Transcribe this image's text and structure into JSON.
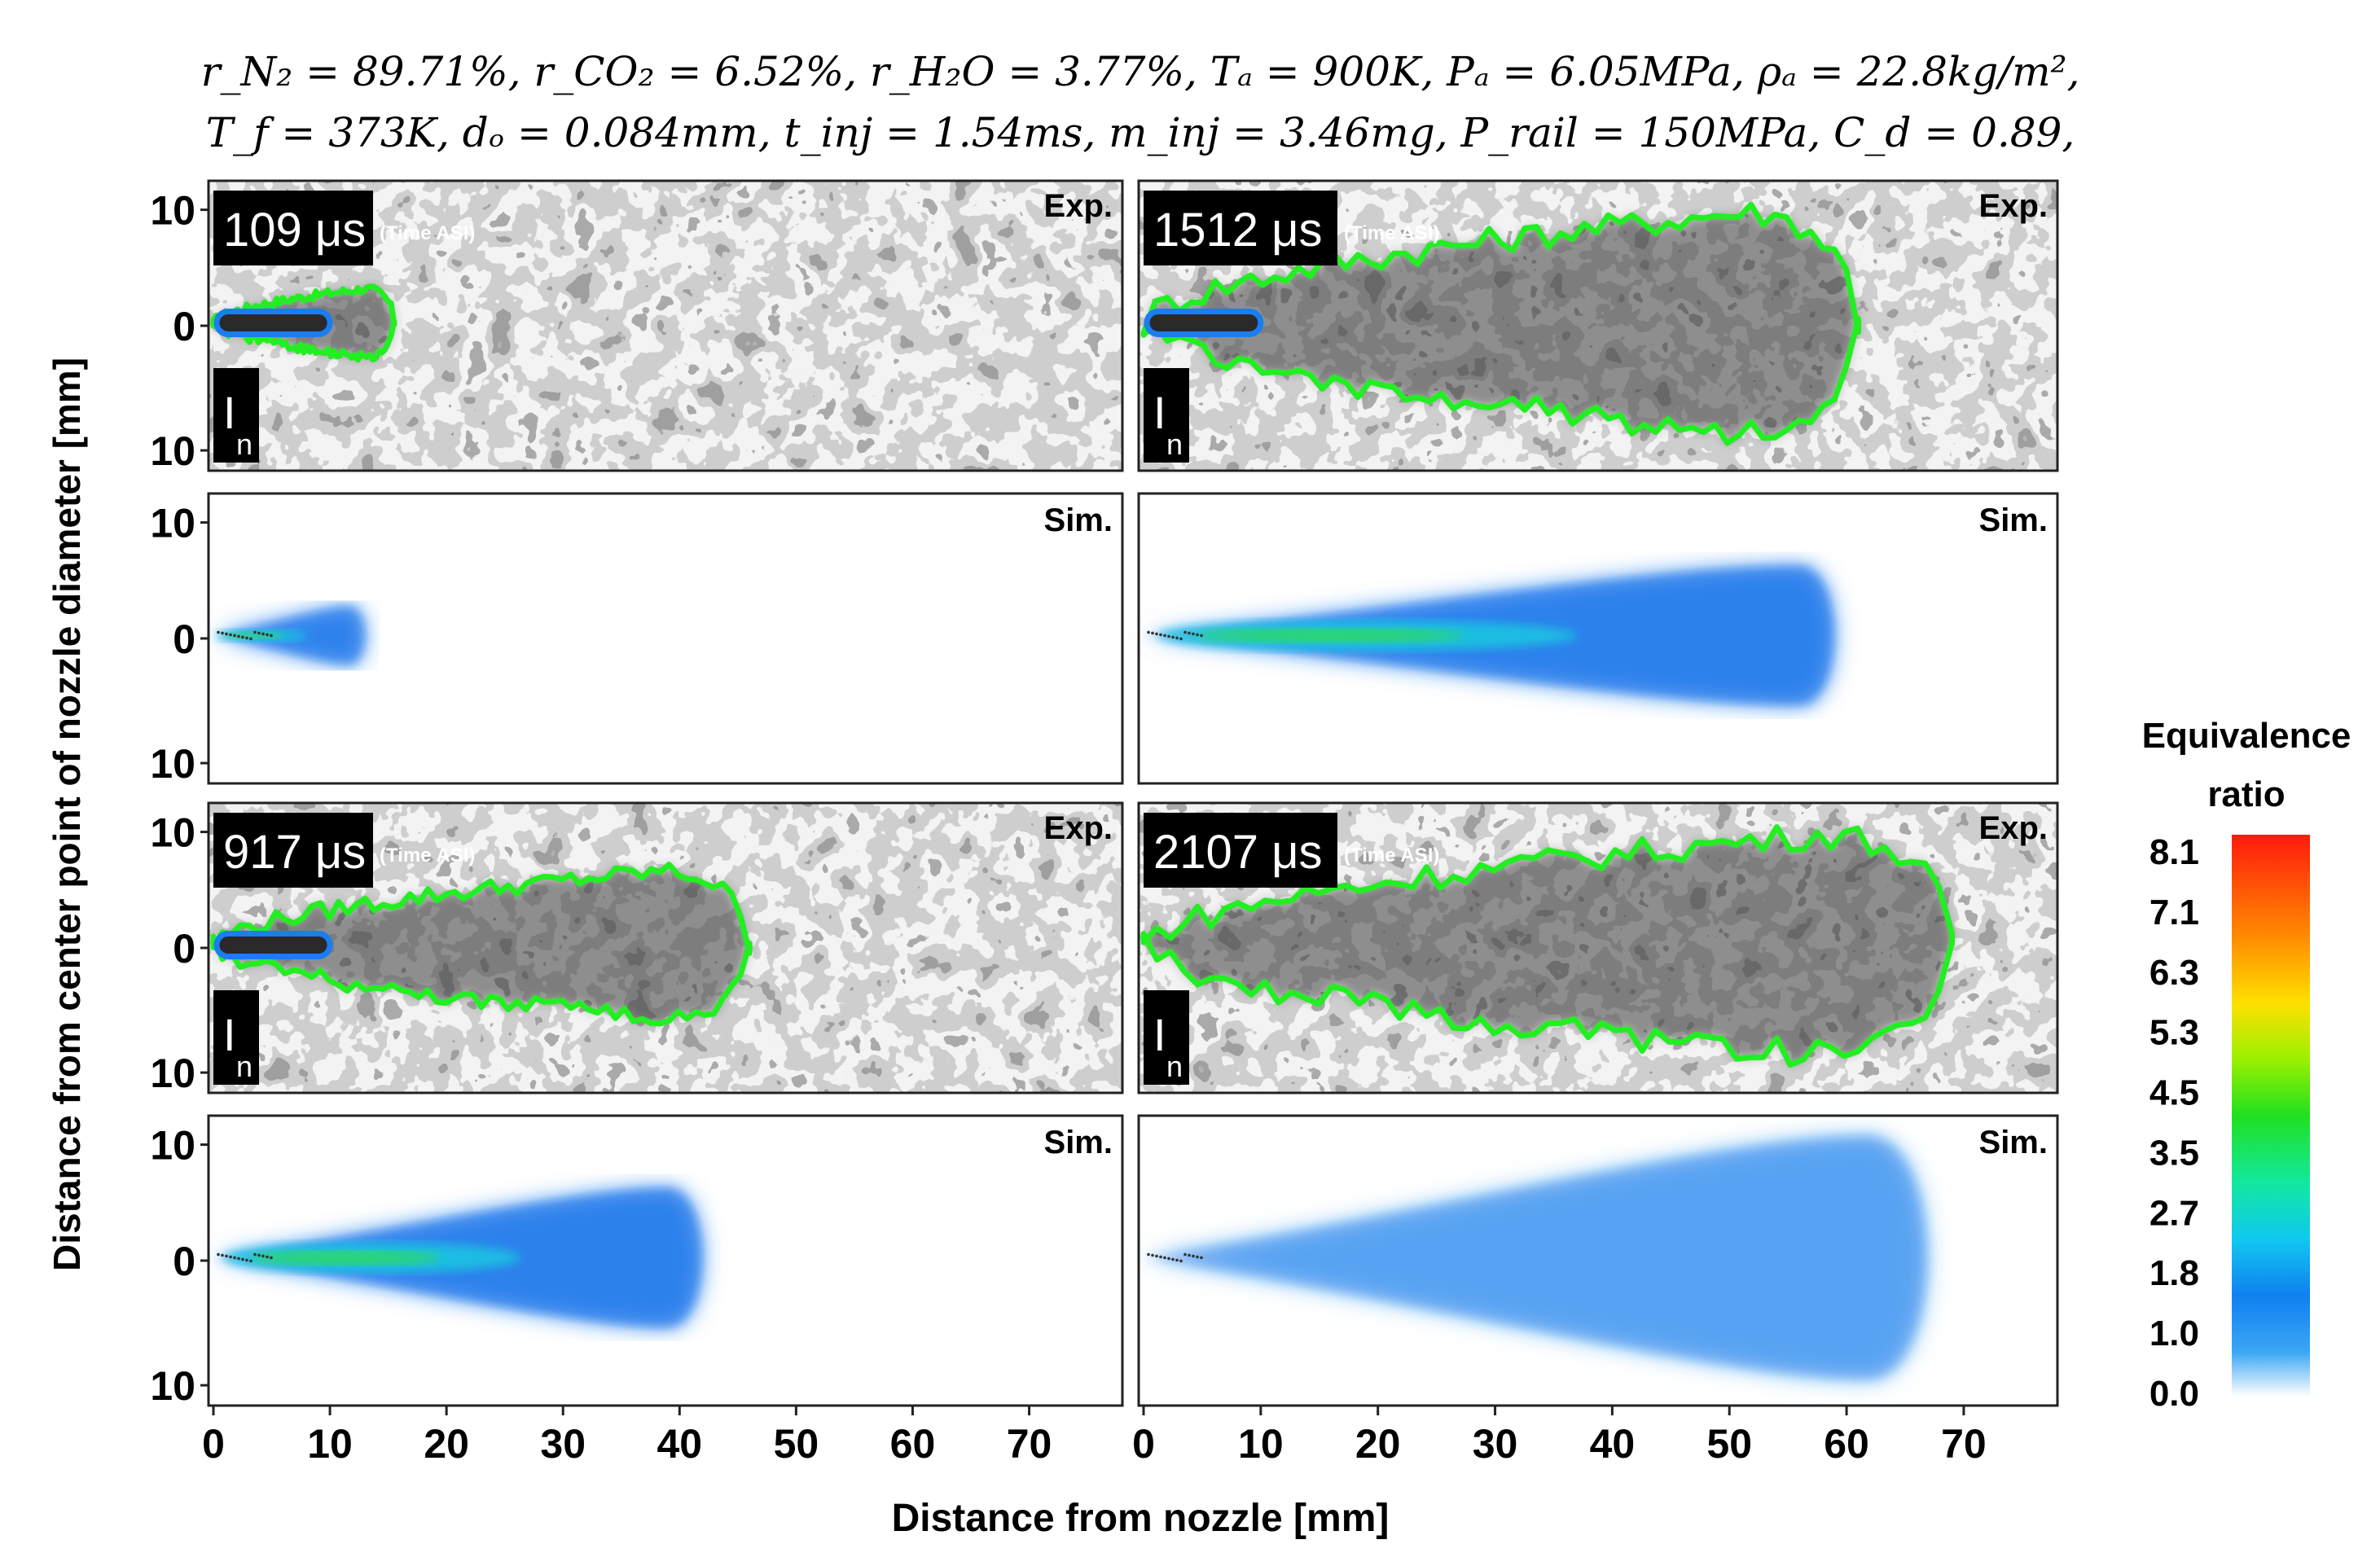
{
  "header": {
    "line1": "r_N₂ = 89.71%, r_CO₂ = 6.52%, r_H₂O = 3.77%, Tₐ = 900K, Pₐ = 6.05MPa, ρₐ = 22.8kg/m²,",
    "line2": "T_f = 373K, dₒ = 0.084mm, t_inj = 1.54ms, m_inj = 3.46mg, P_rail = 150MPa, C_d = 0.89,"
  },
  "axes": {
    "xlabel": "Distance from nozzle [mm]",
    "ylabel": "Distance from center point of nozzle diameter [mm]",
    "x_ticks": [
      "0",
      "10",
      "20",
      "30",
      "40",
      "50",
      "60",
      "70"
    ],
    "y_ticks": [
      "10",
      "0",
      "10"
    ]
  },
  "labels": {
    "exp": "Exp.",
    "sim": "Sim.",
    "time_suffix": "(Time ASI)",
    "unit": "μs",
    "injector": "I",
    "injector_sub": "n"
  },
  "panels": [
    {
      "id": "p109",
      "time": "109",
      "liquid_mm": 10,
      "vapor_mm": 15.5,
      "sim_mm": 13
    },
    {
      "id": "p1512",
      "time": "1512",
      "liquid_mm": 10,
      "vapor_mm": 61,
      "sim_mm": 59
    },
    {
      "id": "p917",
      "time": "917",
      "liquid_mm": 10,
      "vapor_mm": 46,
      "sim_mm": 42
    },
    {
      "id": "p2107",
      "time": "2107",
      "liquid_mm": 0,
      "vapor_mm": 69,
      "sim_mm": 67
    }
  ],
  "colorbar": {
    "title_line1": "Equivalence",
    "title_line2": "ratio",
    "ticks": [
      "8.1",
      "7.1",
      "6.3",
      "5.3",
      "4.5",
      "3.5",
      "2.7",
      "1.8",
      "1.0",
      "0.0"
    ],
    "colors": [
      "#ff1a0d",
      "#ff8a00",
      "#ffe000",
      "#9af000",
      "#20e020",
      "#12e8a0",
      "#10c8f0",
      "#1080f0",
      "#3aa6f4",
      "#ffffff"
    ]
  },
  "contour_colors": {
    "vapor": "#22ee22",
    "liquid": "#1a7df0",
    "sim_core": "#1070ea",
    "sim_mid": "#18c8e0",
    "sim_hot": "#30e040"
  }
}
